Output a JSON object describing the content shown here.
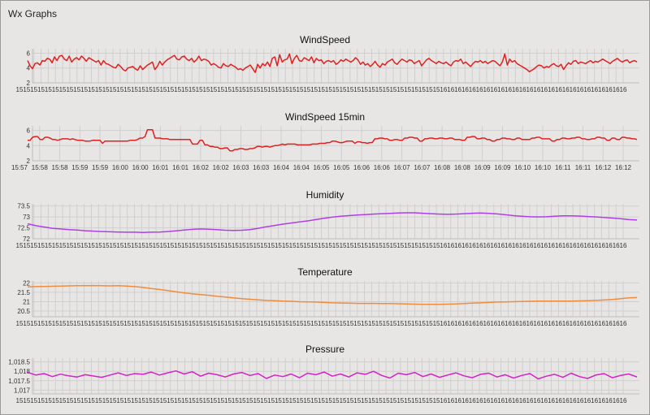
{
  "app": {
    "title": "Wx Graphs"
  },
  "chart_data": [
    {
      "id": "windspeed",
      "type": "line",
      "title": "WindSpeed",
      "ylim": [
        2.0,
        6.6
      ],
      "yticks": [
        2,
        4,
        6
      ],
      "ytick_labels": [
        "2",
        "4",
        "6"
      ],
      "xtick_labels": [
        "15",
        "15",
        "15",
        "15",
        "15",
        "15",
        "15",
        "15",
        "15",
        "15",
        "15",
        "15",
        "15",
        "15",
        "15",
        "15",
        "15",
        "15",
        "15",
        "15",
        "15",
        "15",
        "15",
        "15",
        "15",
        "15",
        "15",
        "15",
        "15",
        "15",
        "15",
        "15",
        "15",
        "15",
        "15",
        "15",
        "15",
        "15",
        "15",
        "15",
        "15",
        "15",
        "15",
        "15",
        "15",
        "15",
        "15",
        "15",
        "15",
        "15",
        "15",
        "15",
        "15",
        "15",
        "15",
        "15",
        "15",
        "15",
        "15",
        "16",
        "16",
        "16",
        "16",
        "16",
        "16",
        "16",
        "16",
        "16",
        "16",
        "16",
        "16",
        "16",
        "16",
        "16",
        "16",
        "16",
        "16",
        "16",
        "16",
        "16",
        "16",
        "16",
        "16",
        "16",
        "16"
      ],
      "color": "#e02020",
      "values": [
        5.0,
        4.3,
        3.9,
        4.6,
        4.7,
        4.4,
        5.0,
        4.9,
        5.3,
        5.2,
        4.7,
        5.5,
        5.0,
        5.6,
        5.7,
        5.2,
        5.0,
        5.6,
        4.8,
        5.2,
        5.4,
        5.1,
        5.6,
        5.3,
        4.9,
        5.4,
        5.2,
        5.0,
        4.8,
        5.0,
        4.4,
        5.0,
        4.6,
        4.5,
        4.3,
        4.1,
        4.0,
        4.5,
        4.2,
        3.8,
        3.6,
        4.0,
        4.1,
        4.2,
        3.9,
        3.7,
        4.3,
        3.8,
        4.1,
        4.4,
        4.6,
        4.8,
        3.8,
        4.2,
        4.9,
        4.4,
        4.8,
        5.1,
        5.3,
        5.5,
        5.7,
        5.2,
        5.1,
        5.5,
        5.6,
        5.2,
        5.0,
        5.3,
        4.8,
        5.1,
        5.6,
        5.0,
        5.2,
        5.1,
        4.9,
        4.4,
        4.6,
        4.4,
        4.1,
        4.0,
        4.6,
        4.3,
        4.2,
        4.5,
        4.3,
        4.1,
        3.8,
        3.9,
        3.7,
        4.0,
        4.2,
        4.4,
        3.9,
        3.4,
        4.5,
        4.0,
        4.6,
        4.3,
        4.8,
        4.2,
        5.3,
        5.5,
        4.3,
        5.8,
        4.8,
        5.1,
        5.2,
        5.9,
        4.6,
        5.3,
        5.7,
        5.0,
        4.9,
        5.4,
        5.2,
        5.0,
        5.5,
        4.7,
        5.3,
        5.0,
        5.1,
        4.6,
        4.9,
        5.0,
        4.8,
        5.0,
        4.5,
        4.7,
        5.1,
        4.9,
        5.2,
        5.0,
        4.8,
        5.0,
        5.4,
        5.1,
        4.5,
        4.8,
        4.4,
        4.6,
        4.2,
        4.5,
        4.9,
        4.4,
        4.1,
        4.6,
        4.4,
        4.8,
        5.0,
        5.2,
        4.7,
        4.5,
        4.9,
        5.2,
        5.0,
        4.8,
        5.1,
        5.0,
        4.6,
        4.8,
        5.0,
        4.3,
        4.7,
        5.1,
        5.3,
        5.0,
        4.8,
        4.6,
        4.9,
        4.7,
        4.6,
        4.8,
        4.5,
        4.3,
        4.8,
        5.0,
        4.9,
        5.2,
        4.6,
        4.8,
        4.5,
        4.2,
        4.6,
        4.9,
        4.8,
        5.0,
        4.7,
        4.9,
        4.6,
        4.8,
        5.0,
        4.9,
        4.6,
        4.3,
        4.8,
        5.9,
        4.4,
        5.2,
        4.8,
        5.0,
        4.6,
        4.4,
        4.2,
        4.0,
        3.8,
        3.5,
        3.7,
        3.9,
        4.2,
        4.4,
        4.3,
        4.0,
        4.2,
        4.1,
        4.4,
        4.6,
        4.3,
        4.2,
        4.5,
        3.8,
        4.3,
        4.7,
        4.5,
        4.9,
        5.0,
        4.6,
        4.8,
        4.7,
        4.6,
        4.8,
        5.0,
        4.7,
        4.9,
        4.8,
        5.0,
        5.2,
        5.0,
        4.8,
        4.6,
        4.9,
        5.1,
        5.3,
        5.0,
        4.8,
        5.0,
        5.1,
        4.7,
        4.9,
        5.0,
        4.8
      ]
    },
    {
      "id": "windspeed15",
      "type": "line",
      "title": "WindSpeed 15min",
      "ylim": [
        2.0,
        6.6
      ],
      "yticks": [
        2,
        4,
        6
      ],
      "ytick_labels": [
        "2",
        "4",
        "6"
      ],
      "xtick_labels": [
        "15:57",
        "15:58",
        "15:58",
        "15:59",
        "15:59",
        "16:00",
        "16:00",
        "16:01",
        "16:01",
        "16:02",
        "16:02",
        "16:03",
        "16:03",
        "16:04",
        "16:04",
        "16:05",
        "16:05",
        "16:06",
        "16:06",
        "16:07",
        "16:07",
        "16:08",
        "16:08",
        "16:09",
        "16:09",
        "16:10",
        "16:10",
        "16:11",
        "16:11",
        "16:12",
        "16:12"
      ],
      "color": "#e02020",
      "values": [
        4.7,
        4.7,
        5.1,
        5.2,
        5.2,
        4.8,
        4.8,
        5.1,
        5.1,
        5.0,
        4.8,
        4.8,
        4.7,
        4.8,
        4.9,
        4.9,
        4.9,
        4.8,
        4.9,
        4.8,
        4.7,
        4.7,
        4.7,
        4.6,
        4.6,
        4.6,
        4.7,
        4.7,
        4.7,
        4.7,
        4.3,
        4.6,
        4.6,
        4.6,
        4.6,
        4.6,
        4.6,
        4.6,
        4.6,
        4.6,
        4.6,
        4.7,
        4.7,
        4.7,
        4.8,
        5.0,
        5.0,
        5.2,
        6.1,
        6.1,
        6.1,
        5.0,
        5.0,
        5.0,
        4.9,
        4.9,
        4.9,
        4.8,
        4.8,
        4.8,
        4.8,
        4.8,
        4.8,
        4.8,
        4.8,
        4.8,
        4.2,
        4.2,
        4.2,
        4.7,
        4.7,
        4.1,
        4.1,
        3.9,
        3.9,
        3.8,
        3.8,
        3.6,
        3.6,
        3.7,
        3.7,
        3.3,
        3.3,
        3.5,
        3.5,
        3.6,
        3.6,
        3.5,
        3.5,
        3.6,
        3.6,
        3.7,
        3.9,
        3.9,
        3.8,
        3.9,
        3.9,
        3.8,
        3.9,
        4.0,
        4.0,
        4.1,
        4.2,
        4.1,
        4.2,
        4.2,
        4.2,
        4.2,
        4.1,
        4.1,
        4.1,
        4.1,
        4.1,
        4.1,
        4.2,
        4.2,
        4.2,
        4.3,
        4.3,
        4.3,
        4.4,
        4.4,
        4.6,
        4.6,
        4.5,
        4.4,
        4.4,
        4.5,
        4.6,
        4.6,
        4.6,
        4.3,
        4.5,
        4.5,
        4.4,
        4.4,
        4.3,
        4.4,
        4.4,
        4.9,
        4.9,
        5.0,
        5.0,
        4.9,
        4.9,
        4.7,
        4.7,
        4.8,
        4.8,
        4.7,
        4.7,
        5.0,
        5.0,
        5.1,
        5.1,
        5.0,
        5.0,
        4.6,
        4.6,
        4.9,
        4.9,
        5.0,
        5.0,
        4.9,
        4.9,
        5.0,
        5.0,
        4.9,
        4.9,
        5.0,
        5.0,
        4.8,
        4.8,
        4.8,
        4.7,
        4.7,
        5.1,
        5.1,
        5.2,
        5.2,
        4.9,
        4.9,
        5.0,
        5.0,
        4.8,
        4.8,
        4.6,
        4.6,
        4.8,
        4.8,
        5.0,
        5.0,
        4.9,
        4.9,
        4.8,
        4.8,
        5.0,
        5.0,
        4.8,
        4.8,
        4.8,
        4.8,
        5.0,
        5.0,
        5.1,
        5.1,
        4.9,
        4.9,
        4.9,
        4.9,
        4.6,
        4.6,
        4.8,
        4.8,
        5.0,
        5.0,
        4.9,
        4.9,
        5.0,
        5.0,
        5.1,
        5.1,
        4.9,
        4.9,
        4.8,
        4.8,
        4.9,
        4.9,
        5.1,
        5.1,
        5.0,
        5.0,
        4.7,
        4.7,
        5.0,
        5.0,
        4.8,
        4.8,
        5.1,
        5.1,
        5.0,
        5.0,
        4.9,
        4.9,
        4.8
      ]
    },
    {
      "id": "humidity",
      "type": "line",
      "title": "Humidity",
      "ylim": [
        72.0,
        73.6
      ],
      "yticks": [
        72,
        72.5,
        73,
        73.5
      ],
      "ytick_labels": [
        "72",
        "72.5",
        "73",
        "73.5"
      ],
      "xtick_labels": [
        "15",
        "15",
        "15",
        "15",
        "15",
        "15",
        "15",
        "15",
        "15",
        "15",
        "15",
        "15",
        "15",
        "15",
        "15",
        "15",
        "15",
        "15",
        "15",
        "15",
        "15",
        "15",
        "15",
        "15",
        "15",
        "15",
        "15",
        "15",
        "15",
        "15",
        "15",
        "15",
        "15",
        "15",
        "15",
        "15",
        "15",
        "15",
        "15",
        "15",
        "15",
        "15",
        "15",
        "15",
        "15",
        "15",
        "15",
        "15",
        "15",
        "15",
        "15",
        "15",
        "15",
        "15",
        "15",
        "15",
        "15",
        "15",
        "15",
        "16",
        "16",
        "16",
        "16",
        "16",
        "16",
        "16",
        "16",
        "16",
        "16",
        "16",
        "16",
        "16",
        "16",
        "16",
        "16",
        "16",
        "16",
        "16",
        "16",
        "16",
        "16",
        "16",
        "16",
        "16",
        "16"
      ],
      "color": "#b03ee8",
      "values": [
        72.69,
        72.6,
        72.54,
        72.48,
        72.45,
        72.42,
        72.4,
        72.37,
        72.35,
        72.33,
        72.32,
        72.31,
        72.3,
        72.3,
        72.29,
        72.3,
        72.31,
        72.33,
        72.36,
        72.4,
        72.43,
        72.45,
        72.44,
        72.42,
        72.39,
        72.38,
        72.39,
        72.42,
        72.48,
        72.55,
        72.61,
        72.67,
        72.72,
        72.77,
        72.82,
        72.88,
        72.94,
        72.99,
        73.03,
        73.06,
        73.09,
        73.11,
        73.13,
        73.15,
        73.16,
        73.18,
        73.19,
        73.19,
        73.17,
        73.15,
        73.13,
        73.12,
        73.13,
        73.15,
        73.17,
        73.18,
        73.16,
        73.14,
        73.1,
        73.06,
        73.03,
        73.01,
        73.0,
        73.01,
        73.03,
        73.05,
        73.05,
        73.04,
        73.02,
        73.0,
        72.98,
        72.95,
        72.92,
        72.88,
        72.86
      ]
    },
    {
      "id": "temperature",
      "type": "line",
      "title": "Temperature",
      "ylim": [
        20.2,
        22.1
      ],
      "yticks": [
        20.5,
        21,
        21.5,
        22
      ],
      "ytick_labels": [
        "20.5",
        "21",
        "21.5",
        "22"
      ],
      "xtick_labels": [
        "15",
        "15",
        "15",
        "15",
        "15",
        "15",
        "15",
        "15",
        "15",
        "15",
        "15",
        "15",
        "15",
        "15",
        "15",
        "15",
        "15",
        "15",
        "15",
        "15",
        "15",
        "15",
        "15",
        "15",
        "15",
        "15",
        "15",
        "15",
        "15",
        "15",
        "15",
        "15",
        "15",
        "15",
        "15",
        "15",
        "15",
        "15",
        "15",
        "15",
        "15",
        "15",
        "15",
        "15",
        "15",
        "15",
        "15",
        "15",
        "15",
        "15",
        "15",
        "15",
        "15",
        "15",
        "15",
        "15",
        "15",
        "15",
        "15",
        "16",
        "16",
        "16",
        "16",
        "16",
        "16",
        "16",
        "16",
        "16",
        "16",
        "16",
        "16",
        "16",
        "16",
        "16",
        "16",
        "16",
        "16",
        "16",
        "16",
        "16",
        "16",
        "16",
        "16",
        "16",
        "16"
      ],
      "color": "#f08c3c",
      "values": [
        21.79,
        21.8,
        21.81,
        21.82,
        21.83,
        21.84,
        21.85,
        21.85,
        21.86,
        21.85,
        21.84,
        21.85,
        21.83,
        21.8,
        21.76,
        21.7,
        21.65,
        21.59,
        21.53,
        21.47,
        21.42,
        21.38,
        21.34,
        21.29,
        21.25,
        21.2,
        21.16,
        21.13,
        21.1,
        21.07,
        21.05,
        21.03,
        21.02,
        21.0,
        20.99,
        20.98,
        20.96,
        20.94,
        20.93,
        20.92,
        20.91,
        20.91,
        20.91,
        20.9,
        20.9,
        20.89,
        20.88,
        20.87,
        20.86,
        20.86,
        20.86,
        20.87,
        20.88,
        20.9,
        20.92,
        20.94,
        20.96,
        20.98,
        20.99,
        21.0,
        21.01,
        21.02,
        21.03,
        21.03,
        21.03,
        21.03,
        21.03,
        21.04,
        21.05,
        21.07,
        21.09,
        21.12,
        21.16,
        21.2,
        21.22
      ]
    },
    {
      "id": "pressure",
      "type": "line",
      "title": "Pressure",
      "ylim": [
        1016.8,
        1018.7
      ],
      "yticks": [
        1017,
        1017.5,
        1018,
        1018.5
      ],
      "ytick_labels": [
        "1,017",
        "1,017.5",
        "1,018",
        "1,018.5"
      ],
      "xtick_labels": [
        "15",
        "15",
        "15",
        "15",
        "15",
        "15",
        "15",
        "15",
        "15",
        "15",
        "15",
        "15",
        "15",
        "15",
        "15",
        "15",
        "15",
        "15",
        "15",
        "15",
        "15",
        "15",
        "15",
        "15",
        "15",
        "15",
        "15",
        "15",
        "15",
        "15",
        "15",
        "15",
        "15",
        "15",
        "15",
        "15",
        "15",
        "15",
        "15",
        "15",
        "15",
        "15",
        "15",
        "15",
        "15",
        "15",
        "15",
        "15",
        "15",
        "15",
        "15",
        "15",
        "15",
        "15",
        "15",
        "15",
        "15",
        "15",
        "15",
        "16",
        "16",
        "16",
        "16",
        "16",
        "16",
        "16",
        "16",
        "16",
        "16",
        "16",
        "16",
        "16",
        "16",
        "16",
        "16",
        "16",
        "16",
        "16",
        "16",
        "16",
        "16",
        "16",
        "16",
        "16",
        "16"
      ],
      "color": "#d620c8",
      "values": [
        1017.95,
        1017.8,
        1017.88,
        1017.72,
        1017.85,
        1017.76,
        1017.7,
        1017.82,
        1017.75,
        1017.68,
        1017.8,
        1017.92,
        1017.78,
        1017.88,
        1017.84,
        1017.96,
        1017.8,
        1017.92,
        1018.02,
        1017.86,
        1017.98,
        1017.74,
        1017.9,
        1017.82,
        1017.7,
        1017.86,
        1017.94,
        1017.78,
        1017.88,
        1017.62,
        1017.8,
        1017.72,
        1017.86,
        1017.66,
        1017.9,
        1017.82,
        1017.96,
        1017.74,
        1017.86,
        1017.7,
        1017.92,
        1017.84,
        1018.0,
        1017.78,
        1017.64,
        1017.9,
        1017.82,
        1017.94,
        1017.72,
        1017.86,
        1017.68,
        1017.8,
        1017.92,
        1017.76,
        1017.66,
        1017.84,
        1017.9,
        1017.7,
        1017.82,
        1017.64,
        1017.78,
        1017.88,
        1017.6,
        1017.74,
        1017.84,
        1017.68,
        1017.9,
        1017.72,
        1017.62,
        1017.8,
        1017.88,
        1017.66,
        1017.78,
        1017.86,
        1017.7
      ]
    }
  ]
}
